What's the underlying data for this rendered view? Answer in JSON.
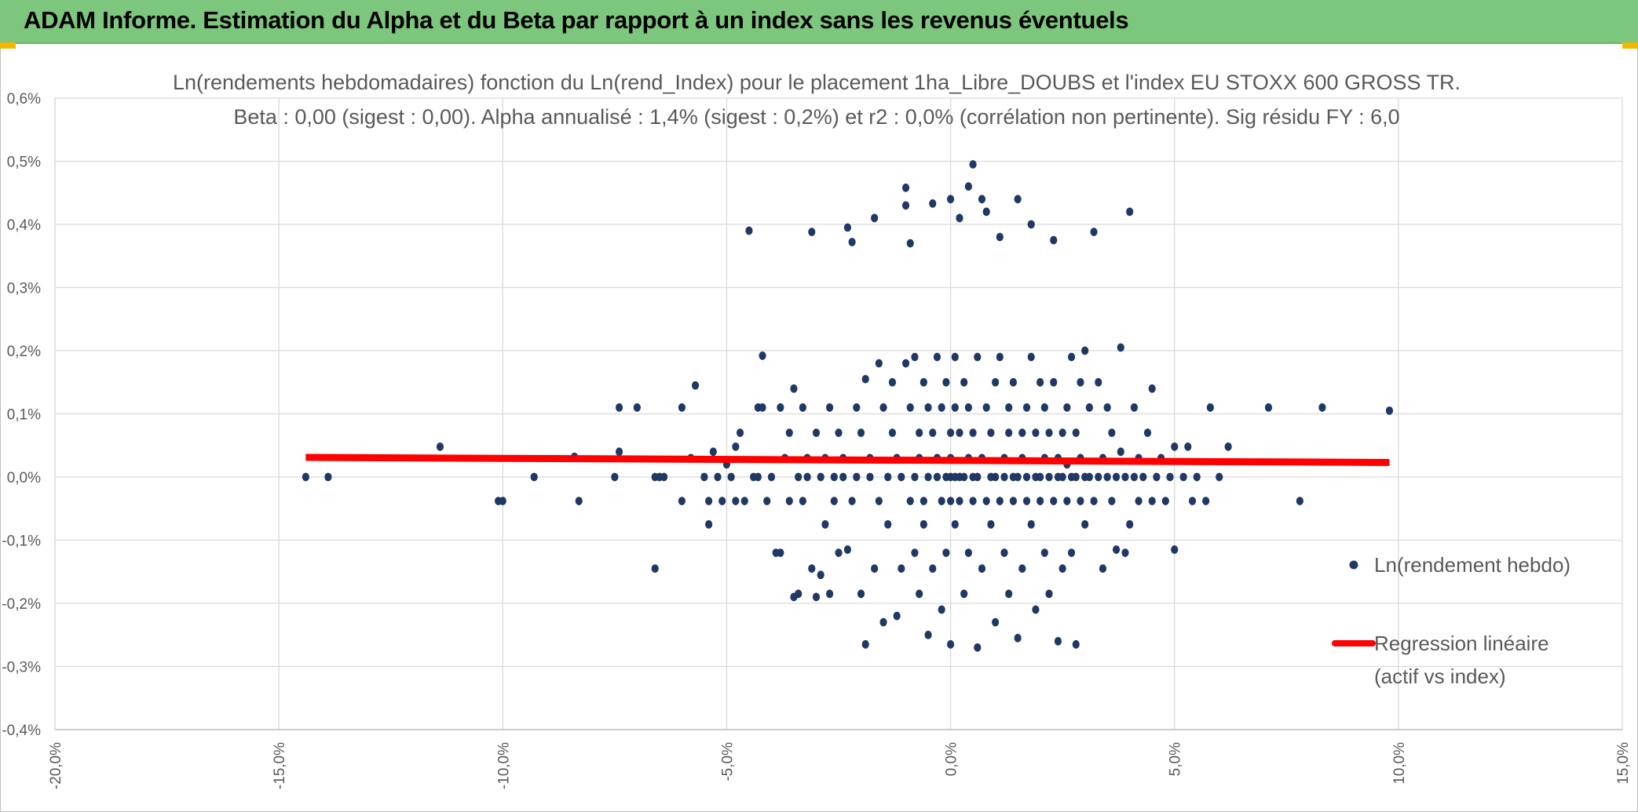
{
  "banner": {
    "title": "ADAM Informe. Estimation du Alpha et du Beta par rapport à un index sans les revenus éventuels",
    "color": "#7dc67d"
  },
  "chart_data": {
    "type": "scatter",
    "title_lines": [
      "Ln(rendements hebdomadaires) fonction du Ln(rend_Index) pour le placement 1ha_Libre_DOUBS et l'index EU STOXX 600 GROSS TR.",
      "Beta : 0,00 (sigest : 0,00). Alpha annualisé : 1,4% (sigest : 0,2%) et r2 : 0,0% (corrélation non pertinente). Sig résidu FY : 6,0"
    ],
    "xlim": [
      -0.2,
      0.15
    ],
    "ylim": [
      -0.004,
      0.006
    ],
    "x_ticks": [
      -0.2,
      -0.15,
      -0.1,
      -0.05,
      0.0,
      0.05,
      0.1,
      0.15
    ],
    "x_tick_labels": [
      "-20,0%",
      "-15,0%",
      "-10,0%",
      "-5,0%",
      "0,0%",
      "5,0%",
      "10,0%",
      "15,0%"
    ],
    "y_ticks": [
      0.006,
      0.005,
      0.004,
      0.003,
      0.002,
      0.001,
      0.0,
      -0.001,
      -0.002,
      -0.003,
      -0.004
    ],
    "y_tick_labels": [
      "0,6%",
      "0,5%",
      "0,4%",
      "0,3%",
      "0,2%",
      "0,1%",
      "0,0%",
      "-0,1%",
      "-0,2%",
      "-0,3%",
      "-0,4%"
    ],
    "grid": true,
    "legend_position": "right",
    "series": [
      {
        "name": "Ln(rendement hebdo)",
        "kind": "scatter",
        "color": "#1f3864",
        "points": [
          [
            -0.144,
            0.0
          ],
          [
            -0.139,
            0.0
          ],
          [
            -0.114,
            0.00048
          ],
          [
            -0.101,
            -0.00038
          ],
          [
            -0.1,
            -0.00038
          ],
          [
            -0.093,
            0.0
          ],
          [
            -0.084,
            0.00032
          ],
          [
            -0.083,
            -0.00038
          ],
          [
            -0.075,
            0.0
          ],
          [
            -0.074,
            0.0004
          ],
          [
            -0.074,
            0.0011
          ],
          [
            -0.07,
            0.0011
          ],
          [
            -0.066,
            -0.00145
          ],
          [
            -0.066,
            0.0
          ],
          [
            -0.065,
            0.0
          ],
          [
            -0.064,
            0.0
          ],
          [
            -0.06,
            0.0011
          ],
          [
            -0.06,
            -0.00038
          ],
          [
            -0.058,
            0.0003
          ],
          [
            -0.057,
            0.00145
          ],
          [
            -0.055,
            0.0
          ],
          [
            -0.054,
            -0.00038
          ],
          [
            -0.054,
            -0.00075
          ],
          [
            -0.053,
            0.0004
          ],
          [
            -0.052,
            0.0
          ],
          [
            -0.051,
            -0.00038
          ],
          [
            -0.05,
            0.0002
          ],
          [
            -0.049,
            0.0
          ],
          [
            -0.048,
            0.00048
          ],
          [
            -0.048,
            -0.00038
          ],
          [
            -0.047,
            0.0007
          ],
          [
            -0.046,
            -0.00038
          ],
          [
            -0.045,
            0.0039
          ],
          [
            -0.044,
            0.0
          ],
          [
            -0.043,
            0.0011
          ],
          [
            -0.043,
            0.0
          ],
          [
            -0.042,
            0.00192
          ],
          [
            -0.042,
            0.0011
          ],
          [
            -0.041,
            -0.00038
          ],
          [
            -0.04,
            0.0
          ],
          [
            -0.039,
            -0.0012
          ],
          [
            -0.038,
            -0.0012
          ],
          [
            -0.038,
            0.0011
          ],
          [
            -0.037,
            0.0003
          ],
          [
            -0.036,
            0.0007
          ],
          [
            -0.036,
            -0.00038
          ],
          [
            -0.035,
            0.0014
          ],
          [
            -0.035,
            -0.0019
          ],
          [
            -0.034,
            0.0
          ],
          [
            -0.034,
            -0.00185
          ],
          [
            -0.033,
            0.0011
          ],
          [
            -0.033,
            -0.00038
          ],
          [
            -0.032,
            0.0003
          ],
          [
            -0.032,
            0.0
          ],
          [
            -0.031,
            -0.00145
          ],
          [
            -0.031,
            0.00388
          ],
          [
            -0.03,
            -0.0019
          ],
          [
            -0.03,
            0.0007
          ],
          [
            -0.029,
            -0.00155
          ],
          [
            -0.029,
            0.0
          ],
          [
            -0.028,
            0.0003
          ],
          [
            -0.028,
            -0.00075
          ],
          [
            -0.027,
            0.0011
          ],
          [
            -0.027,
            -0.00185
          ],
          [
            -0.026,
            0.0
          ],
          [
            -0.026,
            -0.00038
          ],
          [
            -0.025,
            0.0007
          ],
          [
            -0.025,
            -0.0012
          ],
          [
            -0.024,
            0.0003
          ],
          [
            -0.024,
            0.0
          ],
          [
            -0.023,
            0.00395
          ],
          [
            -0.023,
            -0.00115
          ],
          [
            -0.022,
            -0.00038
          ],
          [
            -0.022,
            0.00372
          ],
          [
            -0.021,
            0.0
          ],
          [
            -0.021,
            0.0011
          ],
          [
            -0.02,
            -0.00185
          ],
          [
            -0.02,
            0.0007
          ],
          [
            -0.019,
            0.00155
          ],
          [
            -0.019,
            -0.00265
          ],
          [
            -0.018,
            0.0
          ],
          [
            -0.018,
            0.0003
          ],
          [
            -0.017,
            0.0041
          ],
          [
            -0.017,
            -0.00145
          ],
          [
            -0.016,
            -0.00038
          ],
          [
            -0.016,
            0.0018
          ],
          [
            -0.015,
            -0.0023
          ],
          [
            -0.015,
            0.0011
          ],
          [
            -0.014,
            0.0
          ],
          [
            -0.014,
            -0.00075
          ],
          [
            -0.013,
            0.0007
          ],
          [
            -0.013,
            0.0015
          ],
          [
            -0.012,
            -0.0022
          ],
          [
            -0.012,
            0.0003
          ],
          [
            -0.011,
            0.0
          ],
          [
            -0.011,
            -0.00145
          ],
          [
            -0.01,
            0.00458
          ],
          [
            -0.01,
            0.0018
          ],
          [
            -0.01,
            0.0043
          ],
          [
            -0.009,
            -0.00038
          ],
          [
            -0.009,
            0.0011
          ],
          [
            -0.009,
            0.0037
          ],
          [
            -0.008,
            0.0
          ],
          [
            -0.008,
            0.0019
          ],
          [
            -0.008,
            -0.0012
          ],
          [
            -0.007,
            0.0007
          ],
          [
            -0.007,
            -0.00185
          ],
          [
            -0.007,
            0.0003
          ],
          [
            -0.006,
            0.0015
          ],
          [
            -0.006,
            -0.00038
          ],
          [
            -0.006,
            -0.00075
          ],
          [
            -0.005,
            0.0
          ],
          [
            -0.005,
            0.0011
          ],
          [
            -0.005,
            -0.0025
          ],
          [
            -0.004,
            0.00433
          ],
          [
            -0.004,
            0.0007
          ],
          [
            -0.004,
            -0.00145
          ],
          [
            -0.003,
            0.0
          ],
          [
            -0.003,
            0.0003
          ],
          [
            -0.003,
            0.0019
          ],
          [
            -0.002,
            -0.00038
          ],
          [
            -0.002,
            0.0011
          ],
          [
            -0.002,
            -0.0021
          ],
          [
            -0.001,
            0.0
          ],
          [
            -0.001,
            0.0015
          ],
          [
            -0.001,
            -0.0012
          ],
          [
            0.0,
            0.0
          ],
          [
            0.0,
            0.0007
          ],
          [
            0.0,
            -0.00038
          ],
          [
            0.0,
            0.0003
          ],
          [
            0.0,
            0.0044
          ],
          [
            0.0,
            -0.00265
          ],
          [
            0.001,
            0.0
          ],
          [
            0.001,
            0.0011
          ],
          [
            0.001,
            0.0019
          ],
          [
            0.001,
            -0.00075
          ],
          [
            0.002,
            0.0
          ],
          [
            0.002,
            0.0007
          ],
          [
            0.002,
            -0.00038
          ],
          [
            0.002,
            0.0041
          ],
          [
            0.003,
            0.0015
          ],
          [
            0.003,
            -0.00185
          ],
          [
            0.003,
            0.0
          ],
          [
            0.004,
            0.0003
          ],
          [
            0.004,
            0.0011
          ],
          [
            0.004,
            -0.0012
          ],
          [
            0.004,
            0.0046
          ],
          [
            0.005,
            0.0
          ],
          [
            0.005,
            0.0007
          ],
          [
            0.005,
            -0.00038
          ],
          [
            0.005,
            0.00495
          ],
          [
            0.006,
            0.0019
          ],
          [
            0.006,
            -0.0027
          ],
          [
            0.006,
            0.0
          ],
          [
            0.007,
            0.0003
          ],
          [
            0.007,
            0.0044
          ],
          [
            0.007,
            -0.00145
          ],
          [
            0.008,
            0.0011
          ],
          [
            0.008,
            -0.00038
          ],
          [
            0.008,
            0.0042
          ],
          [
            0.009,
            0.0
          ],
          [
            0.009,
            0.0007
          ],
          [
            0.009,
            -0.00075
          ],
          [
            0.01,
            0.0015
          ],
          [
            0.01,
            -0.0023
          ],
          [
            0.01,
            0.0
          ],
          [
            0.011,
            0.0019
          ],
          [
            0.011,
            -0.00038
          ],
          [
            0.011,
            0.0038
          ],
          [
            0.012,
            0.0003
          ],
          [
            0.012,
            0.0
          ],
          [
            0.012,
            -0.0012
          ],
          [
            0.013,
            0.0011
          ],
          [
            0.013,
            0.0007
          ],
          [
            0.013,
            -0.00185
          ],
          [
            0.014,
            0.0
          ],
          [
            0.014,
            -0.00038
          ],
          [
            0.014,
            0.0015
          ],
          [
            0.015,
            0.0044
          ],
          [
            0.015,
            0.0
          ],
          [
            0.015,
            -0.00255
          ],
          [
            0.016,
            0.0007
          ],
          [
            0.016,
            0.0003
          ],
          [
            0.016,
            -0.00145
          ],
          [
            0.017,
            0.0011
          ],
          [
            0.017,
            -0.00038
          ],
          [
            0.017,
            0.0
          ],
          [
            0.018,
            0.0019
          ],
          [
            0.018,
            -0.00075
          ],
          [
            0.018,
            0.004
          ],
          [
            0.019,
            0.0
          ],
          [
            0.019,
            0.0007
          ],
          [
            0.019,
            -0.0021
          ],
          [
            0.02,
            0.0015
          ],
          [
            0.02,
            -0.00038
          ],
          [
            0.02,
            0.0
          ],
          [
            0.021,
            0.0003
          ],
          [
            0.021,
            -0.0012
          ],
          [
            0.021,
            0.0011
          ],
          [
            0.022,
            0.0
          ],
          [
            0.022,
            0.0007
          ],
          [
            0.022,
            -0.00185
          ],
          [
            0.023,
            0.00375
          ],
          [
            0.023,
            -0.00038
          ],
          [
            0.023,
            0.0015
          ],
          [
            0.024,
            0.0
          ],
          [
            0.024,
            -0.0026
          ],
          [
            0.024,
            0.0003
          ],
          [
            0.025,
            0.0007
          ],
          [
            0.025,
            -0.00145
          ],
          [
            0.025,
            0.0
          ],
          [
            0.026,
            0.0011
          ],
          [
            0.026,
            -0.00038
          ],
          [
            0.026,
            0.0002
          ],
          [
            0.027,
            0.0
          ],
          [
            0.027,
            -0.0012
          ],
          [
            0.027,
            0.0019
          ],
          [
            0.028,
            0.0007
          ],
          [
            0.028,
            -0.00265
          ],
          [
            0.028,
            0.0
          ],
          [
            0.029,
            0.0003
          ],
          [
            0.029,
            -0.00038
          ],
          [
            0.029,
            0.0015
          ],
          [
            0.03,
            0.0
          ],
          [
            0.03,
            0.002
          ],
          [
            0.03,
            -0.00075
          ],
          [
            0.031,
            0.0
          ],
          [
            0.031,
            0.0011
          ],
          [
            0.032,
            0.00388
          ],
          [
            0.032,
            -0.00038
          ],
          [
            0.033,
            0.0
          ],
          [
            0.033,
            0.0015
          ],
          [
            0.034,
            0.0003
          ],
          [
            0.034,
            -0.00145
          ],
          [
            0.035,
            0.0
          ],
          [
            0.035,
            0.0011
          ],
          [
            0.036,
            -0.00038
          ],
          [
            0.036,
            0.0007
          ],
          [
            0.037,
            -0.00115
          ],
          [
            0.037,
            0.0
          ],
          [
            0.038,
            0.00205
          ],
          [
            0.038,
            0.0004
          ],
          [
            0.039,
            -0.0012
          ],
          [
            0.039,
            0.0
          ],
          [
            0.04,
            0.0042
          ],
          [
            0.04,
            -0.00075
          ],
          [
            0.041,
            0.0011
          ],
          [
            0.041,
            0.0
          ],
          [
            0.042,
            -0.00038
          ],
          [
            0.042,
            0.0003
          ],
          [
            0.043,
            0.0
          ],
          [
            0.044,
            0.0007
          ],
          [
            0.045,
            -0.00038
          ],
          [
            0.045,
            0.0014
          ],
          [
            0.046,
            0.0
          ],
          [
            0.047,
            0.0003
          ],
          [
            0.048,
            -0.00038
          ],
          [
            0.049,
            0.0
          ],
          [
            0.05,
            -0.00115
          ],
          [
            0.05,
            0.00048
          ],
          [
            0.052,
            0.0
          ],
          [
            0.053,
            0.00048
          ],
          [
            0.054,
            -0.00038
          ],
          [
            0.055,
            0.0
          ],
          [
            0.057,
            -0.00038
          ],
          [
            0.058,
            0.0011
          ],
          [
            0.06,
            0.0
          ],
          [
            0.062,
            0.00048
          ],
          [
            0.071,
            0.0011
          ],
          [
            0.078,
            -0.00038
          ],
          [
            0.083,
            0.0011
          ],
          [
            0.098,
            0.00105
          ]
        ]
      },
      {
        "name": "Regression linéaire (actif vs index)",
        "legend_lines": [
          "Regression linéaire",
          "(actif vs index)"
        ],
        "kind": "line",
        "color": "#ff0000",
        "points": [
          [
            -0.144,
            0.00031
          ],
          [
            0.098,
            0.00023
          ]
        ]
      }
    ]
  }
}
